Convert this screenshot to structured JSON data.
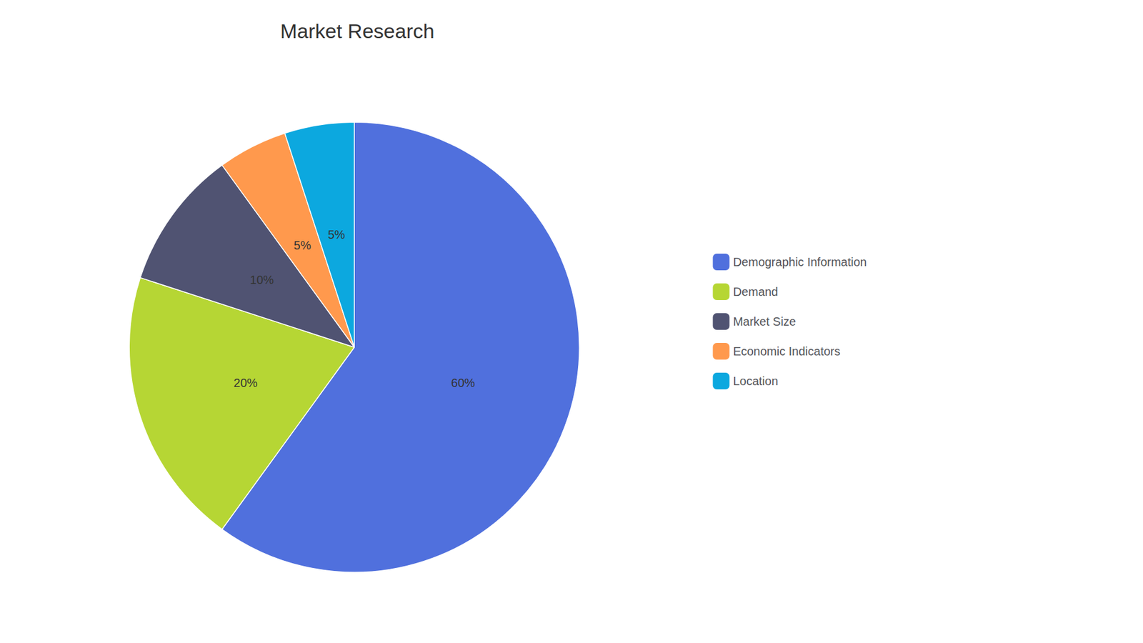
{
  "chart_data": {
    "type": "pie",
    "title": "Market Research",
    "categories": [
      "Demographic Information",
      "Demand",
      "Market Size",
      "Economic Indicators",
      "Location"
    ],
    "values": [
      60,
      20,
      10,
      5,
      5
    ],
    "value_labels": [
      "60%",
      "20%",
      "10%",
      "5%",
      "5%"
    ],
    "data_labels": true,
    "legend": "right"
  }
}
